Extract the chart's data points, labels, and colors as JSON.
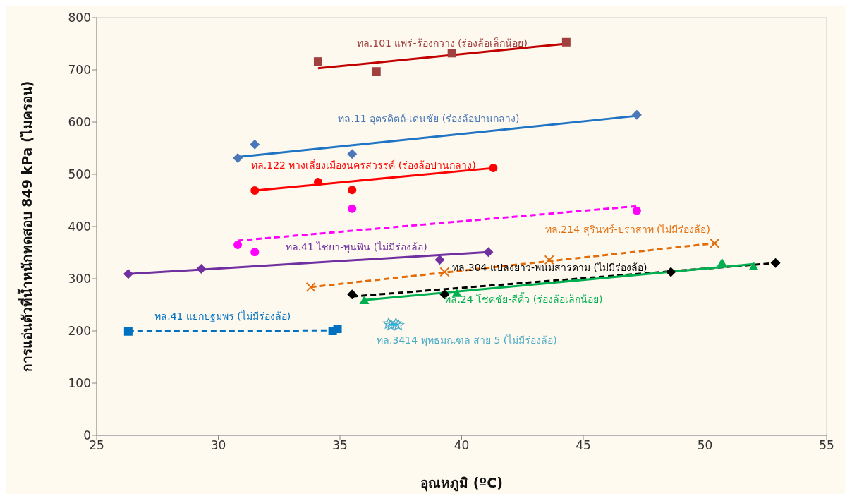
{
  "chart_data": {
    "type": "scatter",
    "xlabel": "อุณหภูมิ (ºC)",
    "ylabel": "การแอ่นตัวที่น้ำหนักทดสอบ 849 kPa (ไมครอน)",
    "xlim": [
      25,
      55
    ],
    "xticks": [
      25,
      30,
      35,
      40,
      45,
      50,
      55
    ],
    "ylim": [
      0,
      800
    ],
    "yticks": [
      0,
      100,
      200,
      300,
      400,
      500,
      600,
      700,
      800
    ],
    "series": [
      {
        "name": "ทล.101 แพร่-ร้องกวาง (ร่องล้อเล็กน้อย)",
        "color": "#a0413f",
        "marker": "square",
        "x": [
          34.1,
          36.5,
          39.6,
          44.3
        ],
        "values": [
          716,
          697,
          732,
          753
        ]
      },
      {
        "type": "line",
        "color": "#c00000",
        "line_style": "solid",
        "marker": "none",
        "x": [
          34.1,
          44.3
        ],
        "values": [
          703,
          750
        ]
      },
      {
        "name": "ทล.11 อุตรดิตถ์-เด่นชัย (ร่องล้อปานกลาง)",
        "color": "#4a78b8",
        "marker": "diamond",
        "x": [
          30.8,
          31.5,
          35.5,
          47.2
        ],
        "values": [
          531,
          557,
          539,
          614
        ]
      },
      {
        "type": "line",
        "color": "#1f74c4",
        "line_style": "solid",
        "marker": "none",
        "x": [
          30.8,
          47.2
        ],
        "values": [
          533,
          612
        ]
      },
      {
        "name": "ทล.122 ทางเลี่ยงเมืองนครสวรรค์ (ร่องล้อปานกลาง)",
        "color": "#ff0000",
        "marker": "circle",
        "x": [
          31.5,
          34.1,
          35.5,
          41.3
        ],
        "values": [
          469,
          485,
          470,
          512
        ]
      },
      {
        "type": "line",
        "color": "#ff0000",
        "line_style": "solid",
        "marker": "none",
        "x": [
          31.5,
          41.3
        ],
        "values": [
          469,
          512
        ]
      },
      {
        "color": "#ff00ff",
        "marker": "circle",
        "x": [
          30.8,
          31.5,
          35.5,
          47.2
        ],
        "values": [
          365,
          351,
          434,
          430
        ]
      },
      {
        "type": "line",
        "color": "#ff00ff",
        "line_style": "dashed",
        "marker": "none",
        "x": [
          30.8,
          47.2
        ],
        "values": [
          373,
          439
        ]
      },
      {
        "name": "ทล.41 ไชยา-พุนพิน (ไม่มีร่องล้อ)",
        "color": "#7030a0",
        "marker": "diamond",
        "x": [
          26.3,
          29.3,
          39.1,
          41.1
        ],
        "values": [
          309,
          319,
          336,
          351
        ]
      },
      {
        "type": "line",
        "color": "#7030a0",
        "line_style": "solid",
        "marker": "none",
        "x": [
          26.3,
          41.1
        ],
        "values": [
          309,
          351
        ]
      },
      {
        "name": "ทล.214 สุรินทร์-ปราสาท (ไม่มีร่องล้อ)",
        "color": "#e36c09",
        "marker": "cross",
        "x": [
          33.8,
          39.3,
          43.6,
          50.4
        ],
        "values": [
          284,
          313,
          336,
          368
        ]
      },
      {
        "type": "line",
        "color": "#e36c09",
        "line_style": "dashed",
        "marker": "none",
        "x": [
          33.8,
          50.4
        ],
        "values": [
          284,
          368
        ]
      },
      {
        "name": "ทล.304 แปลงยาว-พนมสารคาม (ไม่มีร่องล้อ)",
        "color": "#000000",
        "marker": "diamond",
        "x": [
          35.5,
          39.3,
          48.6,
          52.9
        ],
        "values": [
          270,
          270,
          313,
          330
        ]
      },
      {
        "type": "line",
        "color": "#000000",
        "line_style": "dashed",
        "marker": "none",
        "x": [
          35.5,
          52.9
        ],
        "values": [
          266,
          330
        ]
      },
      {
        "name": "ทล.24 โชคชัย-สีคิ้ว (ร่องล้อเล็กน้อย)",
        "color": "#00b050",
        "marker": "triangle",
        "x": [
          36.0,
          39.8,
          50.7,
          52.0
        ],
        "values": [
          258,
          272,
          330,
          323
        ]
      },
      {
        "type": "line",
        "color": "#00b050",
        "line_style": "solid",
        "marker": "none",
        "x": [
          36.0,
          52.0
        ],
        "values": [
          259,
          328
        ]
      },
      {
        "name": "ทล.41 แยกปฐมพร (ไม่มีร่องล้อ)",
        "color": "#0070c0",
        "marker": "square",
        "x": [
          26.3,
          34.7,
          34.9
        ],
        "values": [
          199,
          200,
          204
        ]
      },
      {
        "type": "line",
        "color": "#0070c0",
        "line_style": "dashed",
        "marker": "none",
        "x": [
          26.3,
          34.7
        ],
        "values": [
          200,
          201
        ]
      },
      {
        "name": "ทล.3414 พุทธมณฑล สาย 5 (ไม่มีร่องล้อ)",
        "color": "#4bacc6",
        "marker": "star",
        "x": [
          37.0,
          37.1,
          37.3,
          37.4
        ],
        "values": [
          214,
          211,
          214,
          211
        ]
      },
      {
        "type": "line",
        "color": "#00b0f0",
        "line_style": "solid",
        "marker": "none",
        "x": [
          37.0,
          37.4
        ],
        "values": [
          212,
          212
        ]
      }
    ]
  }
}
